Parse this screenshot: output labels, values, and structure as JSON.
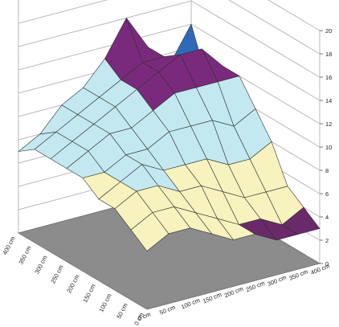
{
  "chart_data": {
    "type": "surface3d",
    "title": "",
    "xlabel": "",
    "ylabel": "",
    "zlabel": "",
    "z_range": [
      0,
      20
    ],
    "z_ticks": [
      "0",
      "2",
      "4",
      "6",
      "8",
      "10",
      "12",
      "14",
      "16",
      "18",
      "20"
    ],
    "x_ticks": [
      "0 cm",
      "50 cm",
      "100 cm",
      "150 cm",
      "200 cm",
      "250 cm",
      "300 cm",
      "350 cm",
      "400 cm"
    ],
    "y_ticks": [
      "0 cm",
      "50 cm",
      "100 cm",
      "150 cm",
      "200 cm",
      "250 cm",
      "300 cm",
      "350 cm",
      "400 cm"
    ],
    "grid": true,
    "floor_color": "#8c8c8c",
    "bands": [
      {
        "from": 0,
        "to": 4,
        "color": "#6a2a6a"
      },
      {
        "from": 4,
        "to": 8,
        "color": "#f7f2be"
      },
      {
        "from": 8,
        "to": 12,
        "color": "#c3e8f0"
      },
      {
        "from": 12,
        "to": 16,
        "color": "#7a2a7c"
      },
      {
        "from": 16,
        "to": 20,
        "color": "#ef9a96"
      }
    ],
    "edge_accent_color": "#2f6ab8",
    "z_values": [
      [
        5,
        6,
        6,
        5,
        4,
        4,
        3,
        3,
        3
      ],
      [
        6,
        7,
        7,
        6,
        5,
        4,
        4,
        3,
        4
      ],
      [
        7,
        8,
        8,
        7,
        7,
        6,
        5,
        5,
        5
      ],
      [
        7,
        8,
        9,
        8,
        8,
        8,
        7,
        7,
        8
      ],
      [
        8,
        8,
        9,
        9,
        10,
        10,
        10,
        9,
        10
      ],
      [
        8,
        9,
        10,
        10,
        11,
        12,
        12,
        12,
        12
      ],
      [
        8,
        9,
        10,
        11,
        12,
        13,
        14,
        14,
        12
      ],
      [
        8,
        9,
        10,
        11,
        12,
        13,
        13,
        11,
        10
      ],
      [
        7,
        8,
        10,
        11,
        13,
        16,
        13,
        11,
        14
      ]
    ]
  }
}
